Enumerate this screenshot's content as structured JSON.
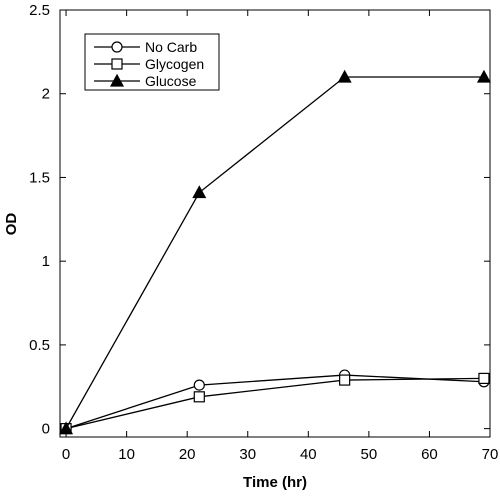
{
  "chart_data": {
    "type": "line",
    "title": "",
    "xlabel": "Time (hr)",
    "ylabel": "OD",
    "xlim": [
      -1,
      70
    ],
    "ylim": [
      -0.05,
      2.5
    ],
    "x_ticks": [
      0,
      10,
      20,
      30,
      40,
      50,
      60,
      70
    ],
    "y_ticks": [
      0,
      0.5,
      1,
      1.5,
      2,
      2.5
    ],
    "x_tick_labels": [
      "0",
      "10",
      "20",
      "30",
      "40",
      "50",
      "60",
      "70"
    ],
    "y_tick_labels": [
      "0",
      "0.5",
      "1",
      "1.5",
      "2",
      "2.5"
    ],
    "grid": false,
    "legend_position": "top-left",
    "series": [
      {
        "name": "No Carb",
        "marker": "circle-open",
        "x": [
          0,
          22,
          46,
          69
        ],
        "y": [
          0,
          0.26,
          0.32,
          0.28
        ]
      },
      {
        "name": "Glycogen",
        "marker": "square-open",
        "x": [
          0,
          22,
          46,
          69
        ],
        "y": [
          0,
          0.19,
          0.29,
          0.3
        ]
      },
      {
        "name": "Glucose",
        "marker": "triangle-filled",
        "x": [
          0,
          22,
          46,
          69
        ],
        "y": [
          0,
          1.41,
          2.1,
          2.1
        ]
      }
    ],
    "colors": {
      "line": "#000000",
      "marker_fill": "#000000",
      "background": "#ffffff"
    }
  }
}
